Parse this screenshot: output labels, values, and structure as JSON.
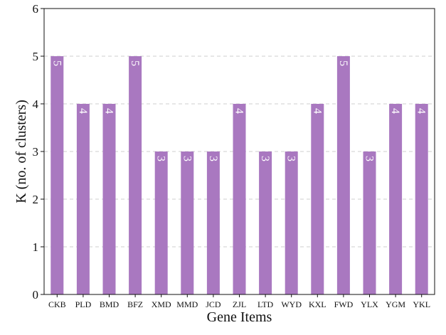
{
  "chart_data": {
    "type": "bar",
    "title": "",
    "xlabel": "Gene Items",
    "ylabel": "K (no. of clusters)",
    "categories": [
      "CKB",
      "PLD",
      "BMD",
      "BFZ",
      "XMD",
      "MMD",
      "JCD",
      "ZJL",
      "LTD",
      "WYD",
      "KXL",
      "FWD",
      "YLX",
      "YGM",
      "YKL"
    ],
    "values": [
      5,
      4,
      4,
      5,
      3,
      3,
      3,
      4,
      3,
      3,
      4,
      5,
      3,
      4,
      4
    ],
    "data_labels": [
      "5",
      "4",
      "4",
      "5",
      "3",
      "3",
      "3",
      "4",
      "3",
      "3",
      "4",
      "5",
      "3",
      "4",
      "4"
    ],
    "ylim": [
      0,
      6
    ],
    "yticks": [
      "0",
      "1",
      "2",
      "3",
      "4",
      "5",
      "6"
    ],
    "grid": "horizontal-dashed",
    "legend": "none",
    "bar_color": "#a978c0",
    "grid_color": "#cfcfcf"
  }
}
